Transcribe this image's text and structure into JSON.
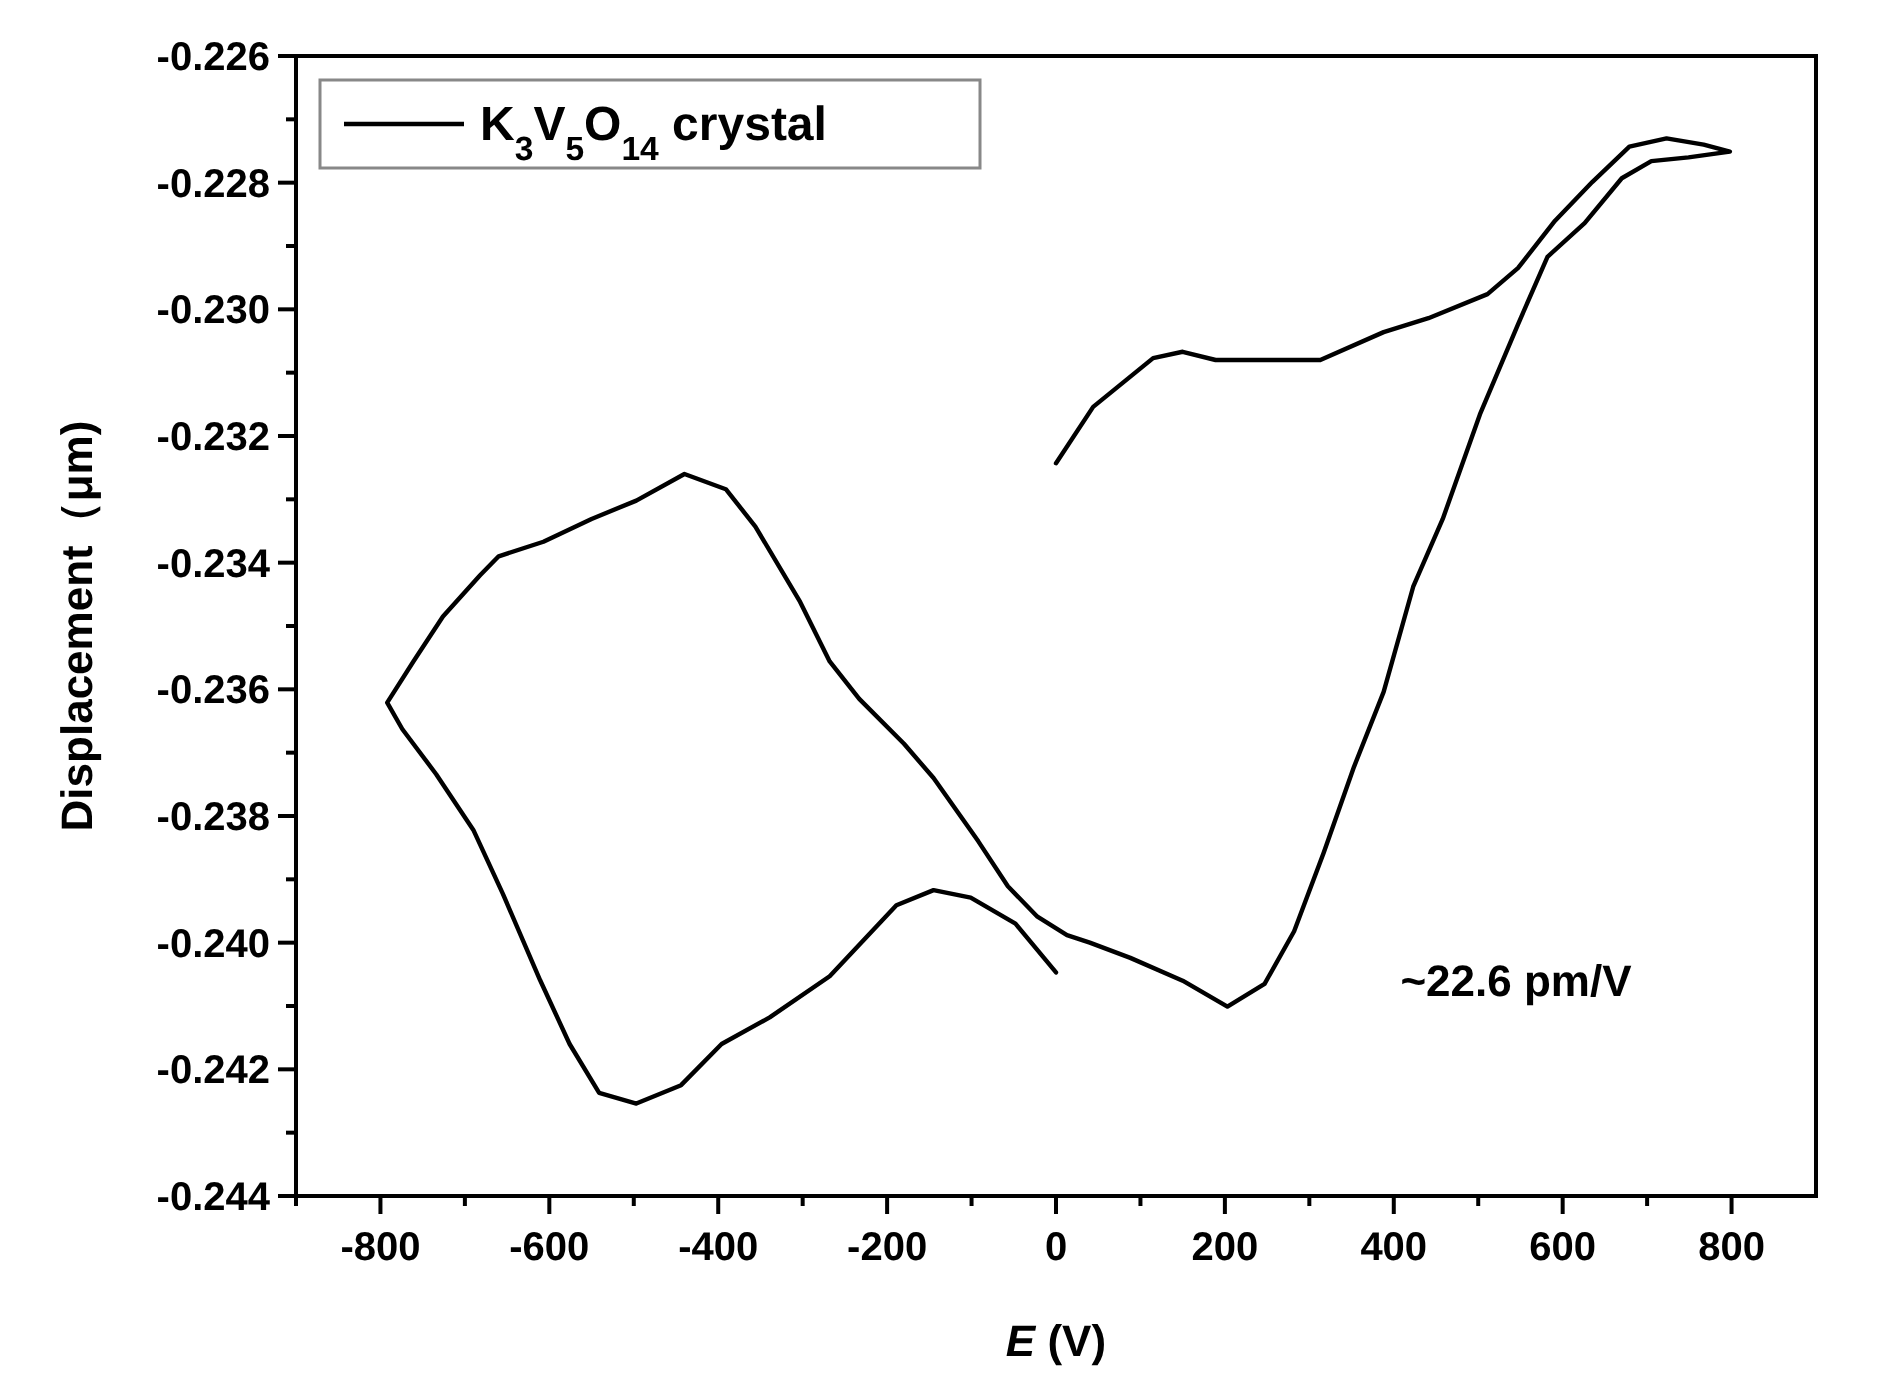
{
  "chart_data": {
    "type": "line",
    "xlabel": "E (V)",
    "ylabel": "Displacement（μm)",
    "xlim": [
      -900,
      900
    ],
    "ylim": [
      -0.244,
      -0.226
    ],
    "xticks": [
      {
        "value": -900,
        "label": null
      },
      -800,
      {
        "value": -700,
        "label": null
      },
      -600,
      {
        "value": -500,
        "label": null
      },
      -400,
      {
        "value": -300,
        "label": null
      },
      -200,
      {
        "value": -100,
        "label": null
      },
      0,
      {
        "value": 100,
        "label": null
      },
      200,
      {
        "value": 300,
        "label": null
      },
      400,
      {
        "value": 500,
        "label": null
      },
      600,
      {
        "value": 700,
        "label": null
      },
      800
    ],
    "yticks": [
      -0.244,
      {
        "value": -0.243,
        "label": null
      },
      -0.242,
      {
        "value": -0.241,
        "label": null
      },
      {
        "value": -0.24,
        "label": "-0.240"
      },
      {
        "value": -0.239,
        "label": null
      },
      -0.238,
      {
        "value": -0.237,
        "label": null
      },
      -0.236,
      {
        "value": -0.235,
        "label": null
      },
      -0.234,
      {
        "value": -0.233,
        "label": null
      },
      -0.232,
      {
        "value": -0.231,
        "label": null
      },
      {
        "value": -0.23,
        "label": "-0.230"
      },
      {
        "value": -0.229,
        "label": null
      },
      -0.228,
      {
        "value": -0.227,
        "label": null
      },
      -0.226
    ],
    "grid": false,
    "legend": "top left",
    "marker": "none",
    "line_style": "solid",
    "annotations": [
      "~22.6 pm/V"
    ],
    "series": [
      {
        "name": "K$_{3}$V$_{5}$O$_{14}$ crystal",
        "color": "#000000",
        "x": [
          0,
          44,
          115,
          150,
          189,
          238,
          313,
          388,
          441,
          511,
          547,
          591,
          635,
          679,
          723,
          767,
          798,
          749,
          705,
          670,
          626,
          582,
          547,
          502,
          458,
          423,
          388,
          353,
          317,
          282,
          247,
          203,
          150,
          88,
          40,
          13,
          -22,
          -57,
          -92,
          -145,
          -180,
          -233,
          -268,
          -303,
          -356,
          -391,
          -440,
          -497,
          -550,
          -607,
          -660,
          -682,
          -726,
          -761,
          -792,
          -774,
          -734,
          -690,
          -655,
          -611,
          -576,
          -541,
          -497,
          -444,
          -396,
          -339,
          -268,
          -189,
          -145,
          -101,
          -48,
          0
        ],
        "values": [
          -0.23243,
          -0.23154,
          -0.23077,
          -0.23067,
          -0.2308,
          -0.2308,
          -0.2308,
          -0.23036,
          -0.23014,
          -0.22976,
          -0.22935,
          -0.2286,
          -0.22799,
          -0.22743,
          -0.2273,
          -0.2274,
          -0.22751,
          -0.2276,
          -0.22766,
          -0.22793,
          -0.22864,
          -0.22917,
          -0.23024,
          -0.23166,
          -0.23331,
          -0.23438,
          -0.23604,
          -0.23722,
          -0.23858,
          -0.23982,
          -0.24065,
          -0.24101,
          -0.2406,
          -0.24024,
          -0.24,
          -0.23988,
          -0.23959,
          -0.23911,
          -0.2384,
          -0.2374,
          -0.23686,
          -0.23615,
          -0.23556,
          -0.23462,
          -0.23343,
          -0.23284,
          -0.2326,
          -0.23302,
          -0.23331,
          -0.23367,
          -0.2339,
          -0.2342,
          -0.23485,
          -0.23556,
          -0.23621,
          -0.23663,
          -0.23734,
          -0.23822,
          -0.23923,
          -0.24059,
          -0.2416,
          -0.24237,
          -0.24254,
          -0.24225,
          -0.2416,
          -0.24118,
          -0.24053,
          -0.23941,
          -0.23917,
          -0.23929,
          -0.2397,
          -0.24047
        ]
      }
    ]
  }
}
